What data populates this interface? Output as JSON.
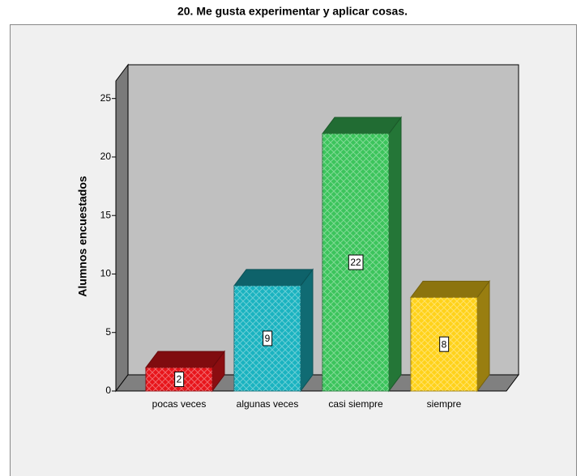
{
  "chart_data": {
    "type": "bar3d",
    "title": "20. Me gusta experimentar y aplicar cosas.",
    "y_label": "Alumnos encuestados",
    "categories": [
      "pocas veces",
      "algunas veces",
      "casi siempre",
      "siempre"
    ],
    "values": [
      2,
      9,
      22,
      8
    ],
    "colors": [
      "#e8151b",
      "#1ab3c0",
      "#3cc45c",
      "#ffd21a"
    ],
    "ylim": [
      0,
      26.5
    ],
    "yticks": [
      0,
      5,
      10,
      15,
      20,
      25
    ]
  }
}
